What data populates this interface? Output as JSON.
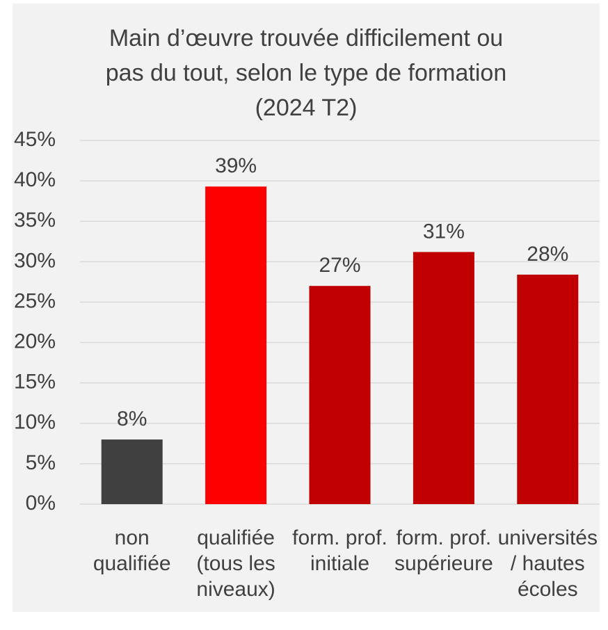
{
  "chart_data": {
    "type": "bar",
    "title": "Main d’œuvre trouvée difficilement ou\npas du tout, selon le type de formation\n(2024 T2)",
    "categories": [
      "non\nqualifiée",
      "qualifiée\n(tous les\nniveaux)",
      "form. prof.\ninitiale",
      "form. prof.\nsupérieure",
      "universités\n/ hautes\nécoles"
    ],
    "values": [
      8,
      39.3,
      27,
      31.2,
      28.4
    ],
    "value_labels": [
      "8%",
      "39%",
      "27%",
      "31%",
      "28%"
    ],
    "colors": [
      "#404040",
      "#ff0000",
      "#c00000",
      "#c00000",
      "#c00000"
    ],
    "ylim": [
      0,
      45
    ],
    "yticks": [
      {
        "value": 0,
        "label": "0%"
      },
      {
        "value": 5,
        "label": "5%"
      },
      {
        "value": 10,
        "label": "10%"
      },
      {
        "value": 15,
        "label": "15%"
      },
      {
        "value": 20,
        "label": "20%"
      },
      {
        "value": 25,
        "label": "25%"
      },
      {
        "value": 30,
        "label": "30%"
      },
      {
        "value": 35,
        "label": "35%"
      },
      {
        "value": 40,
        "label": "40%"
      },
      {
        "value": 45,
        "label": "45%"
      }
    ],
    "grid": true
  }
}
